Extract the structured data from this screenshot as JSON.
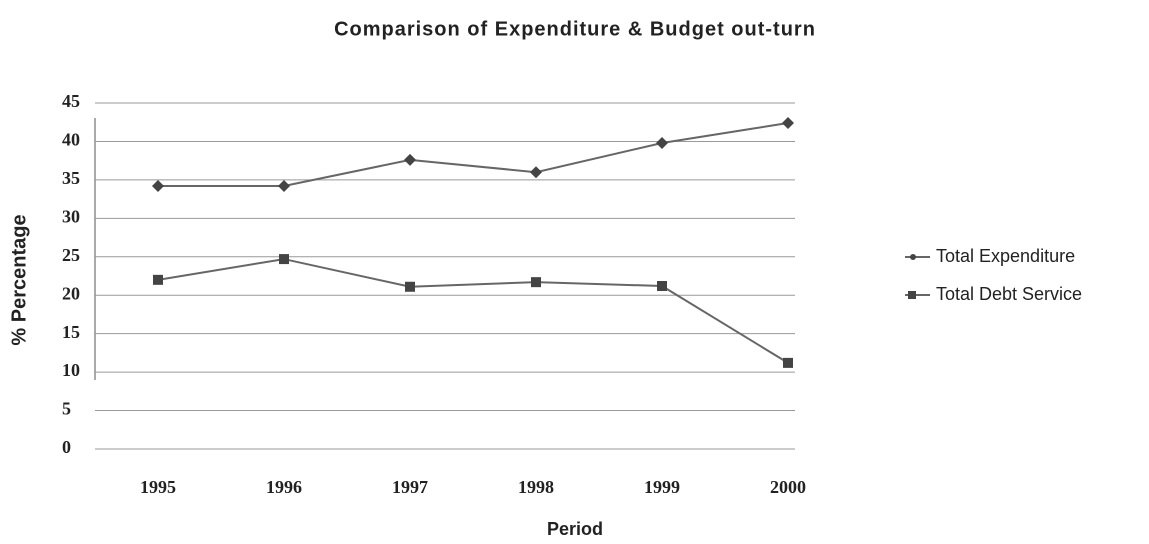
{
  "chart_data": {
    "type": "line",
    "title": "Comparison of Expenditure &  Budget out-turn",
    "x_label": "Period",
    "y_label": "% Percentage",
    "categories": [
      "1995",
      "1996",
      "1997",
      "1998",
      "1999",
      "2000"
    ],
    "series": [
      {
        "name": "Total Expenditure",
        "color": "#666666",
        "marker": "diamond",
        "values": [
          34.2,
          34.2,
          37.6,
          36.0,
          39.8,
          42.4
        ]
      },
      {
        "name": "Total Debt Service",
        "color": "#666666",
        "marker": "square",
        "values": [
          22.0,
          24.7,
          21.1,
          21.7,
          21.2,
          11.2
        ]
      }
    ],
    "ylim": [
      0,
      45
    ],
    "yticks": [
      0,
      5,
      10,
      15,
      20,
      25,
      30,
      35,
      40,
      45
    ],
    "grid": true,
    "legend": "right"
  }
}
